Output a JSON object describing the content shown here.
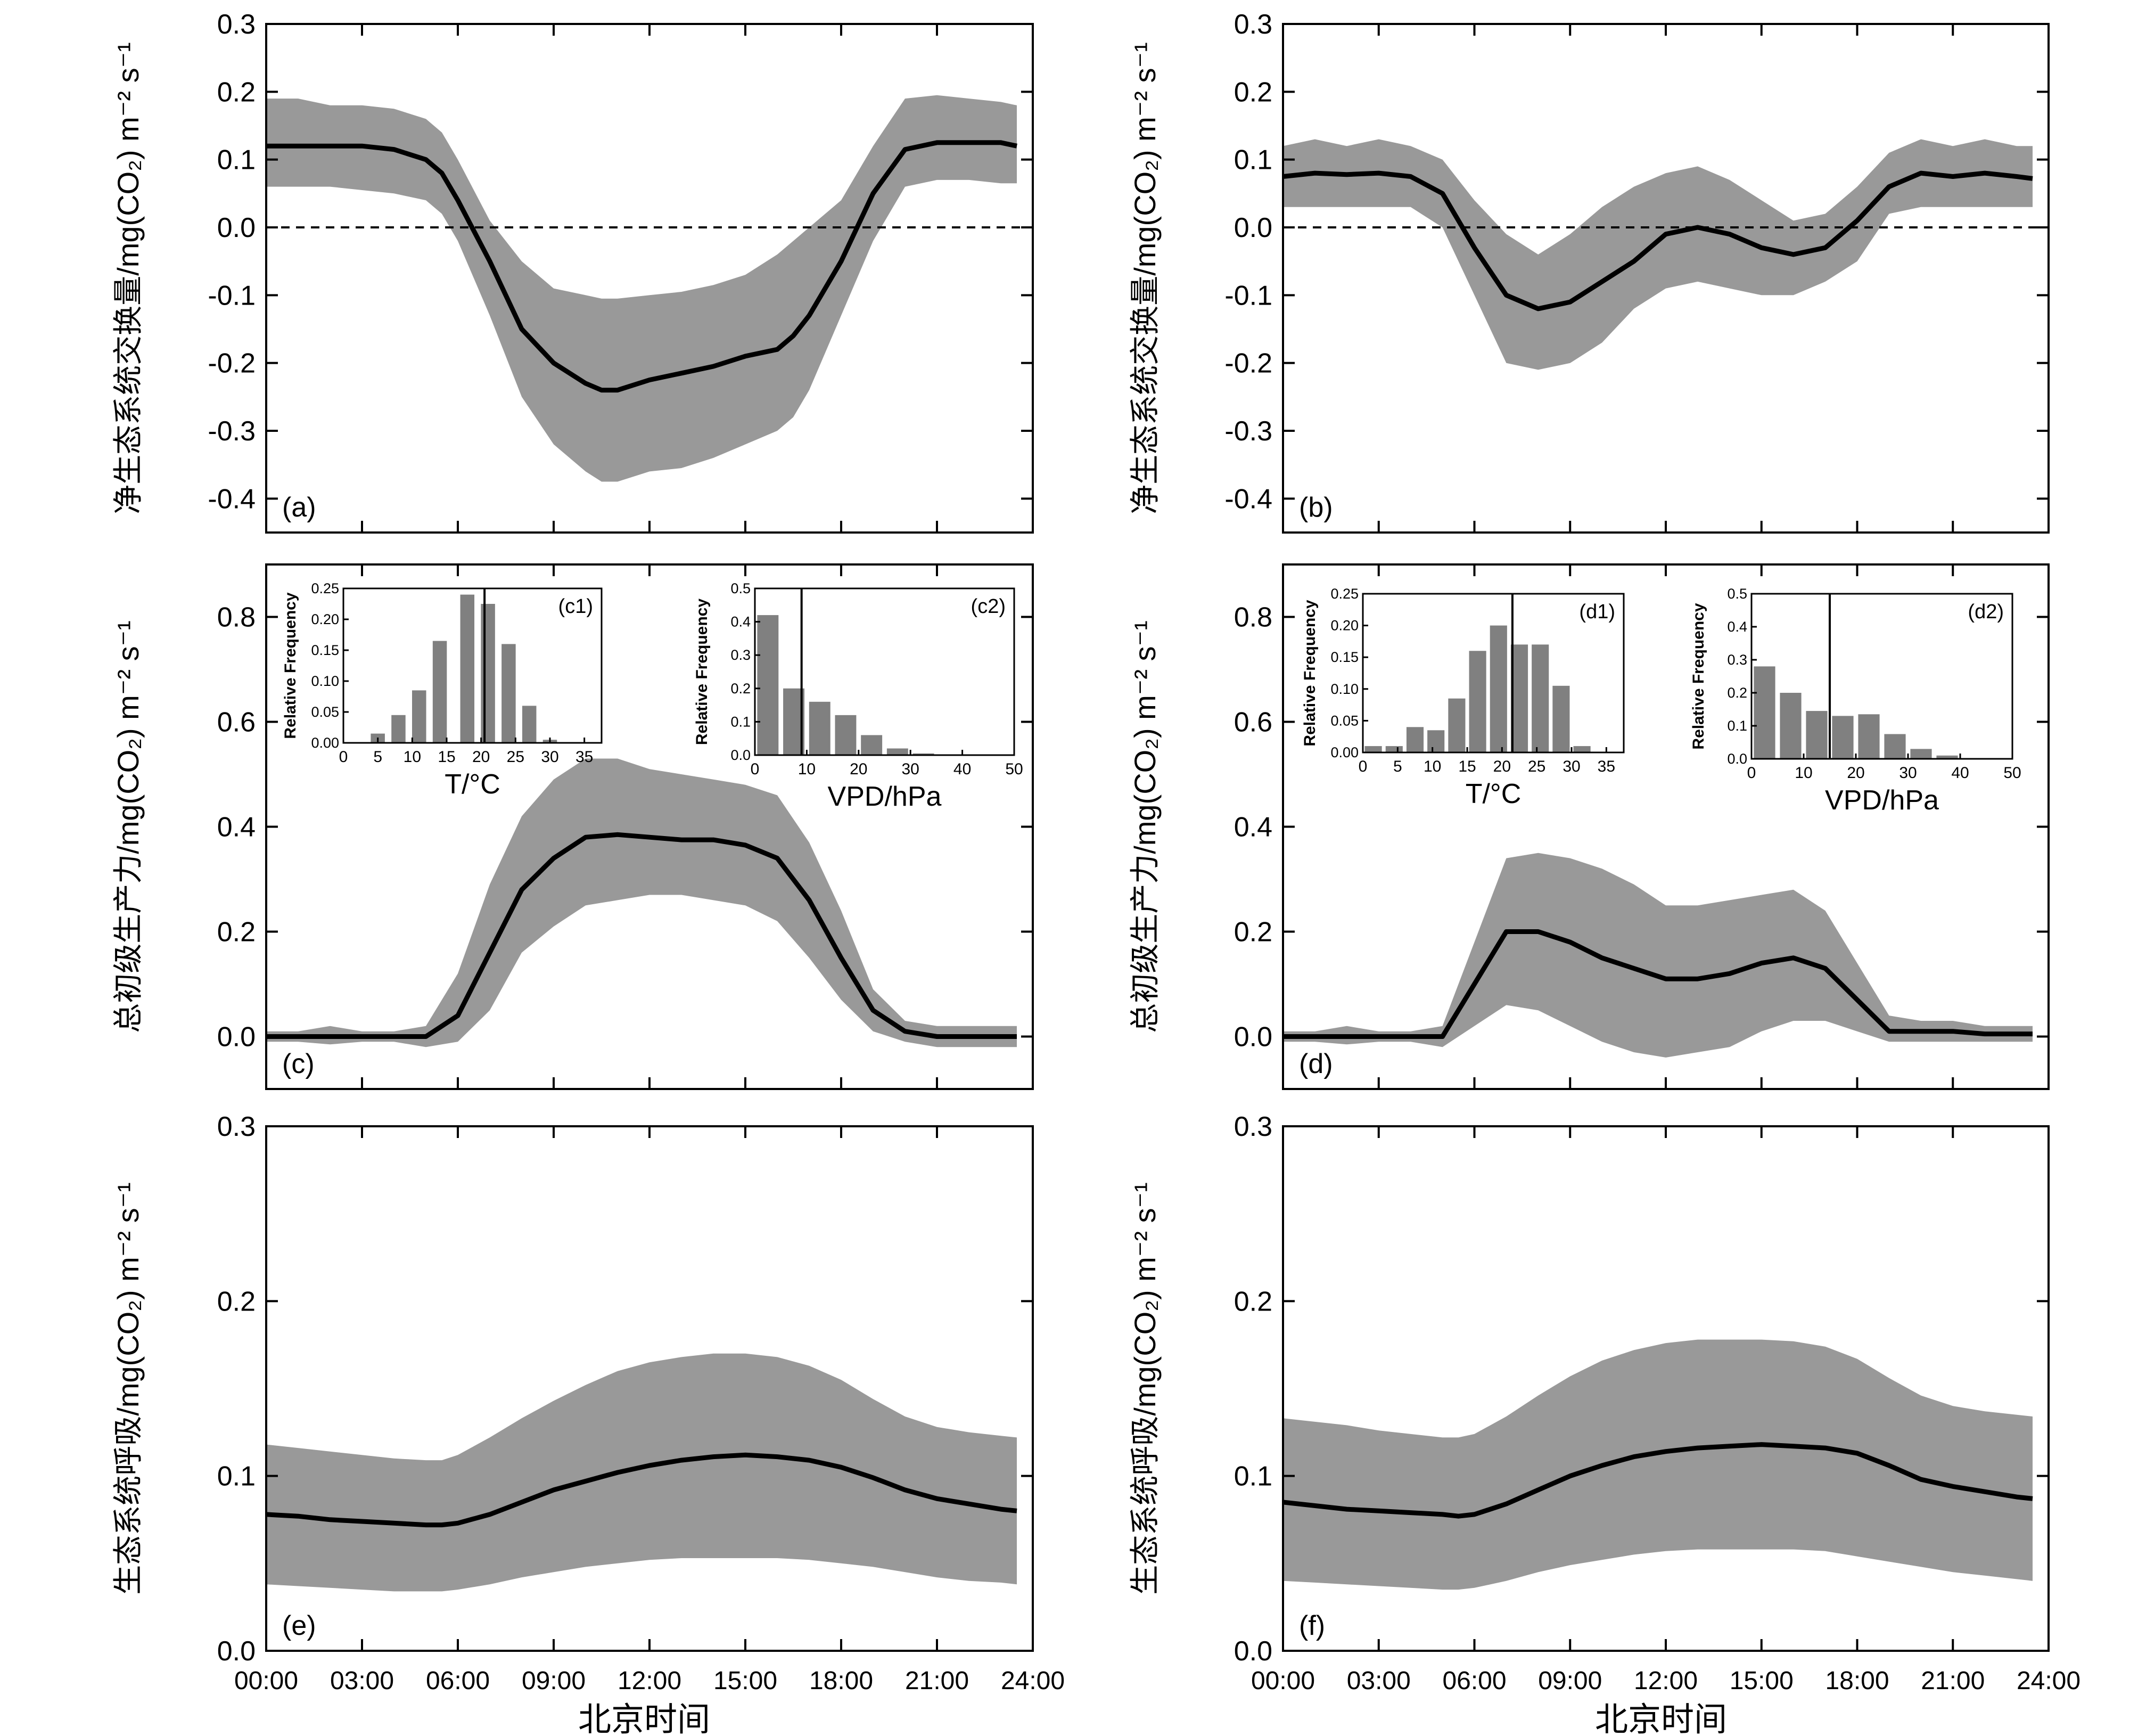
{
  "figure": {
    "xlabel": "北京时间",
    "xticks": [
      "00:00",
      "03:00",
      "06:00",
      "09:00",
      "12:00",
      "15:00",
      "18:00",
      "21:00",
      "24:00"
    ],
    "band_color": "#999999",
    "line_color": "#000000",
    "bar_color": "#808080"
  },
  "chart_data": [
    {
      "id": "a",
      "type": "area",
      "panel_label": "(a)",
      "ylabel": "净生态系统交换量/mg(CO₂) m⁻² s⁻¹",
      "ylim": [
        -0.45,
        0.3
      ],
      "yticks": [
        "0.3",
        "0.2",
        "0.1",
        "0.0",
        "-0.1",
        "-0.2",
        "-0.3",
        "-0.4"
      ],
      "zero_line": true,
      "x": [
        0,
        1,
        2,
        3,
        4,
        5,
        5.5,
        6,
        7,
        8,
        9,
        10,
        10.5,
        11,
        12,
        13,
        14,
        15,
        16,
        16.5,
        17,
        18,
        19,
        20,
        21,
        22,
        23,
        23.5
      ],
      "mean": [
        0.12,
        0.12,
        0.12,
        0.12,
        0.115,
        0.1,
        0.08,
        0.04,
        -0.05,
        -0.15,
        -0.2,
        -0.23,
        -0.24,
        -0.24,
        -0.225,
        -0.215,
        -0.205,
        -0.19,
        -0.18,
        -0.16,
        -0.13,
        -0.05,
        0.05,
        0.115,
        0.125,
        0.125,
        0.125,
        0.12
      ],
      "upper": [
        0.19,
        0.19,
        0.18,
        0.18,
        0.175,
        0.16,
        0.14,
        0.1,
        0.01,
        -0.05,
        -0.09,
        -0.1,
        -0.105,
        -0.105,
        -0.1,
        -0.095,
        -0.085,
        -0.07,
        -0.04,
        -0.02,
        0.0,
        0.04,
        0.12,
        0.19,
        0.195,
        0.19,
        0.185,
        0.18
      ],
      "lower": [
        0.06,
        0.06,
        0.06,
        0.055,
        0.05,
        0.04,
        0.02,
        -0.02,
        -0.13,
        -0.25,
        -0.32,
        -0.36,
        -0.375,
        -0.375,
        -0.36,
        -0.355,
        -0.34,
        -0.32,
        -0.3,
        -0.28,
        -0.24,
        -0.13,
        -0.02,
        0.06,
        0.07,
        0.07,
        0.065,
        0.065
      ]
    },
    {
      "id": "b",
      "type": "area",
      "panel_label": "(b)",
      "ylabel": "净生态系统交换量/mg(CO₂) m⁻² s⁻¹",
      "ylim": [
        -0.45,
        0.3
      ],
      "yticks": [
        "0.3",
        "0.2",
        "0.1",
        "0.0",
        "-0.1",
        "-0.2",
        "-0.3",
        "-0.4"
      ],
      "zero_line": true,
      "x": [
        0,
        1,
        2,
        3,
        4,
        5,
        6,
        7,
        8,
        9,
        10,
        11,
        12,
        13,
        14,
        15,
        16,
        17,
        18,
        19,
        20,
        21,
        22,
        23,
        23.5
      ],
      "mean": [
        0.075,
        0.08,
        0.078,
        0.08,
        0.075,
        0.05,
        -0.03,
        -0.1,
        -0.12,
        -0.11,
        -0.08,
        -0.05,
        -0.01,
        0.0,
        -0.01,
        -0.03,
        -0.04,
        -0.03,
        0.01,
        0.06,
        0.08,
        0.075,
        0.08,
        0.075,
        0.072
      ],
      "upper": [
        0.12,
        0.13,
        0.12,
        0.13,
        0.12,
        0.1,
        0.04,
        -0.01,
        -0.04,
        -0.01,
        0.03,
        0.06,
        0.08,
        0.09,
        0.07,
        0.04,
        0.01,
        0.02,
        0.06,
        0.11,
        0.13,
        0.12,
        0.13,
        0.12,
        0.12
      ],
      "lower": [
        0.03,
        0.03,
        0.03,
        0.03,
        0.03,
        0.0,
        -0.1,
        -0.2,
        -0.21,
        -0.2,
        -0.17,
        -0.12,
        -0.09,
        -0.08,
        -0.09,
        -0.1,
        -0.1,
        -0.08,
        -0.05,
        0.02,
        0.03,
        0.03,
        0.03,
        0.03,
        0.03
      ]
    },
    {
      "id": "c",
      "type": "area",
      "panel_label": "(c)",
      "ylabel": "总初级生产力/mg(CO₂) m⁻² s⁻¹",
      "ylim": [
        -0.1,
        0.9
      ],
      "yticks": [
        "0.8",
        "0.6",
        "0.4",
        "0.2",
        "0.0"
      ],
      "x": [
        0,
        1,
        2,
        3,
        4,
        5,
        6,
        7,
        8,
        9,
        10,
        11,
        12,
        13,
        14,
        15,
        16,
        17,
        18,
        19,
        20,
        21,
        22,
        23,
        23.5
      ],
      "mean": [
        0.0,
        0.0,
        0.0,
        0.0,
        0.0,
        0.0,
        0.04,
        0.16,
        0.28,
        0.34,
        0.38,
        0.385,
        0.38,
        0.375,
        0.375,
        0.365,
        0.34,
        0.26,
        0.15,
        0.05,
        0.01,
        0.0,
        0.0,
        0.0,
        0.0
      ],
      "upper": [
        0.01,
        0.01,
        0.02,
        0.01,
        0.01,
        0.02,
        0.12,
        0.29,
        0.42,
        0.49,
        0.53,
        0.53,
        0.51,
        0.5,
        0.49,
        0.48,
        0.46,
        0.37,
        0.24,
        0.09,
        0.03,
        0.02,
        0.02,
        0.02,
        0.02
      ],
      "lower": [
        -0.01,
        -0.01,
        -0.015,
        -0.01,
        -0.01,
        -0.02,
        -0.01,
        0.05,
        0.16,
        0.21,
        0.25,
        0.26,
        0.27,
        0.27,
        0.26,
        0.25,
        0.22,
        0.15,
        0.07,
        0.01,
        -0.01,
        -0.02,
        -0.02,
        -0.02,
        -0.02
      ],
      "insets": [
        {
          "label": "(c1)",
          "xlabel": "T/°C",
          "ylabel": "Relative Frequency",
          "xticks": [
            "0",
            "5",
            "10",
            "15",
            "20",
            "25",
            "30",
            "35"
          ],
          "xlim": [
            0,
            37.5
          ],
          "yticks": [
            "0.25",
            "0.20",
            "0.15",
            "0.10",
            "0.05",
            "0.00"
          ],
          "ylim": [
            0,
            0.25
          ],
          "bin_centers": [
            2.5,
            5,
            8,
            11,
            14,
            18,
            21,
            24,
            27,
            30,
            33
          ],
          "values": [
            0.0,
            0.015,
            0.045,
            0.085,
            0.165,
            0.24,
            0.225,
            0.16,
            0.06,
            0.005,
            0.0
          ],
          "vline": 20.5
        },
        {
          "label": "(c2)",
          "xlabel": "VPD/hPa",
          "ylabel": "Relative Frequency",
          "xticks": [
            "0",
            "10",
            "20",
            "30",
            "40",
            "50"
          ],
          "xlim": [
            0,
            50
          ],
          "yticks": [
            "0.5",
            "0.4",
            "0.3",
            "0.2",
            "0.1",
            "0.0"
          ],
          "ylim": [
            0,
            0.5
          ],
          "bin_centers": [
            2.5,
            7.5,
            12.5,
            17.5,
            22.5,
            27.5,
            32.5,
            37.5
          ],
          "values": [
            0.42,
            0.2,
            0.16,
            0.12,
            0.06,
            0.02,
            0.005,
            0.0
          ],
          "vline": 9
        }
      ]
    },
    {
      "id": "d",
      "type": "area",
      "panel_label": "(d)",
      "ylabel": "总初级生产力/mg(CO₂) m⁻² s⁻¹",
      "ylim": [
        -0.1,
        0.9
      ],
      "yticks": [
        "0.8",
        "0.6",
        "0.4",
        "0.2",
        "0.0"
      ],
      "x": [
        0,
        1,
        2,
        3,
        4,
        5,
        6,
        7,
        8,
        9,
        10,
        11,
        12,
        13,
        14,
        15,
        16,
        17,
        18,
        19,
        20,
        21,
        22,
        23,
        23.5
      ],
      "mean": [
        0.0,
        0.0,
        0.0,
        0.0,
        0.0,
        0.0,
        0.1,
        0.2,
        0.2,
        0.18,
        0.15,
        0.13,
        0.11,
        0.11,
        0.12,
        0.14,
        0.15,
        0.13,
        0.07,
        0.01,
        0.01,
        0.01,
        0.005,
        0.005,
        0.005
      ],
      "upper": [
        0.01,
        0.01,
        0.02,
        0.01,
        0.01,
        0.02,
        0.18,
        0.34,
        0.35,
        0.34,
        0.32,
        0.29,
        0.25,
        0.25,
        0.26,
        0.27,
        0.28,
        0.24,
        0.14,
        0.04,
        0.03,
        0.03,
        0.02,
        0.02,
        0.02
      ],
      "lower": [
        -0.01,
        -0.01,
        -0.015,
        -0.01,
        -0.01,
        -0.02,
        0.02,
        0.06,
        0.05,
        0.02,
        -0.01,
        -0.03,
        -0.04,
        -0.03,
        -0.02,
        0.01,
        0.03,
        0.03,
        0.01,
        -0.01,
        -0.01,
        -0.01,
        -0.01,
        -0.01,
        -0.01
      ],
      "insets": [
        {
          "label": "(d1)",
          "xlabel": "T/°C",
          "ylabel": "Relative Frequency",
          "xticks": [
            "0",
            "5",
            "10",
            "15",
            "20",
            "25",
            "30",
            "35"
          ],
          "xlim": [
            0,
            37.5
          ],
          "yticks": [
            "0.25",
            "0.20",
            "0.15",
            "0.10",
            "0.05",
            "0.00"
          ],
          "ylim": [
            0,
            0.25
          ],
          "bin_centers": [
            1.5,
            4.5,
            7.5,
            10.5,
            13.5,
            16.5,
            19.5,
            22.5,
            25.5,
            28.5,
            31.5,
            34.5
          ],
          "values": [
            0.01,
            0.01,
            0.04,
            0.035,
            0.085,
            0.16,
            0.2,
            0.17,
            0.17,
            0.105,
            0.01,
            0.0
          ],
          "vline": 21.5
        },
        {
          "label": "(d2)",
          "xlabel": "VPD/hPa",
          "ylabel": "Relative Frequency",
          "xticks": [
            "0",
            "10",
            "20",
            "30",
            "40",
            "50"
          ],
          "xlim": [
            0,
            50
          ],
          "yticks": [
            "0.5",
            "0.4",
            "0.3",
            "0.2",
            "0.1",
            "0.0"
          ],
          "ylim": [
            0,
            0.5
          ],
          "bin_centers": [
            2.5,
            7.5,
            12.5,
            17.5,
            22.5,
            27.5,
            32.5,
            37.5,
            42.5
          ],
          "values": [
            0.28,
            0.2,
            0.145,
            0.13,
            0.135,
            0.075,
            0.03,
            0.01,
            0.0
          ],
          "vline": 15
        }
      ]
    },
    {
      "id": "e",
      "type": "area",
      "panel_label": "(e)",
      "ylabel": "生态系统呼吸/mg(CO₂) m⁻² s⁻¹",
      "ylim": [
        0,
        0.3
      ],
      "yticks": [
        "0.3",
        "0.2",
        "0.1",
        "0.0"
      ],
      "x": [
        0,
        1,
        2,
        3,
        4,
        5,
        5.5,
        6,
        7,
        8,
        9,
        10,
        11,
        12,
        13,
        14,
        15,
        16,
        17,
        18,
        19,
        20,
        21,
        22,
        23,
        23.5
      ],
      "mean": [
        0.078,
        0.077,
        0.075,
        0.074,
        0.073,
        0.072,
        0.072,
        0.073,
        0.078,
        0.085,
        0.092,
        0.097,
        0.102,
        0.106,
        0.109,
        0.111,
        0.112,
        0.111,
        0.109,
        0.105,
        0.099,
        0.092,
        0.087,
        0.084,
        0.081,
        0.08
      ],
      "upper": [
        0.118,
        0.116,
        0.114,
        0.112,
        0.11,
        0.109,
        0.109,
        0.112,
        0.122,
        0.133,
        0.143,
        0.152,
        0.16,
        0.165,
        0.168,
        0.17,
        0.17,
        0.168,
        0.163,
        0.155,
        0.144,
        0.134,
        0.128,
        0.125,
        0.123,
        0.122
      ],
      "lower": [
        0.038,
        0.037,
        0.036,
        0.035,
        0.034,
        0.034,
        0.034,
        0.035,
        0.038,
        0.042,
        0.045,
        0.048,
        0.05,
        0.052,
        0.053,
        0.053,
        0.053,
        0.053,
        0.052,
        0.05,
        0.048,
        0.045,
        0.042,
        0.04,
        0.039,
        0.038
      ]
    },
    {
      "id": "f",
      "type": "area",
      "panel_label": "(f)",
      "ylabel": "生态系统呼吸/mg(CO₂) m⁻² s⁻¹",
      "ylim": [
        0,
        0.3
      ],
      "yticks": [
        "0.3",
        "0.2",
        "0.1",
        "0.0"
      ],
      "x": [
        0,
        1,
        2,
        3,
        4,
        5,
        5.5,
        6,
        7,
        8,
        9,
        10,
        11,
        12,
        13,
        14,
        15,
        16,
        17,
        18,
        19,
        20,
        21,
        22,
        23,
        23.5
      ],
      "mean": [
        0.085,
        0.083,
        0.081,
        0.08,
        0.079,
        0.078,
        0.077,
        0.078,
        0.084,
        0.092,
        0.1,
        0.106,
        0.111,
        0.114,
        0.116,
        0.117,
        0.118,
        0.117,
        0.116,
        0.113,
        0.106,
        0.098,
        0.094,
        0.091,
        0.088,
        0.087
      ],
      "upper": [
        0.133,
        0.131,
        0.129,
        0.126,
        0.124,
        0.122,
        0.122,
        0.124,
        0.134,
        0.146,
        0.157,
        0.166,
        0.172,
        0.176,
        0.178,
        0.178,
        0.178,
        0.177,
        0.174,
        0.167,
        0.156,
        0.146,
        0.14,
        0.137,
        0.135,
        0.134
      ],
      "lower": [
        0.04,
        0.039,
        0.038,
        0.037,
        0.036,
        0.035,
        0.035,
        0.036,
        0.04,
        0.045,
        0.049,
        0.052,
        0.055,
        0.057,
        0.058,
        0.058,
        0.058,
        0.058,
        0.057,
        0.054,
        0.051,
        0.048,
        0.045,
        0.043,
        0.041,
        0.04
      ]
    }
  ]
}
